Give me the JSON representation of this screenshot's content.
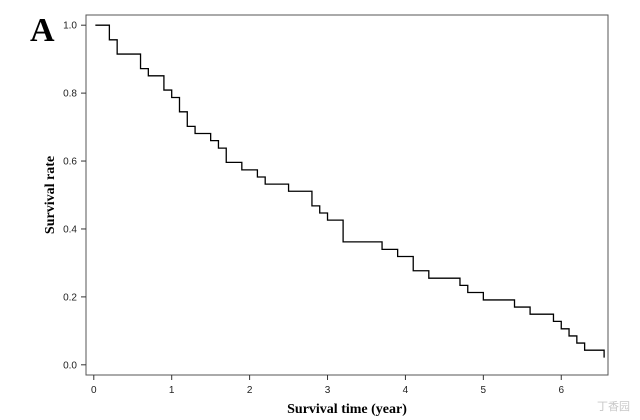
{
  "panel_label": "A",
  "chart_data": {
    "type": "line",
    "step": true,
    "title": "",
    "xlabel": "Survival time (year)",
    "ylabel": "Survival rate",
    "xlim": [
      -0.1,
      6.6
    ],
    "ylim": [
      -0.03,
      1.03
    ],
    "xticks": [
      0,
      1,
      2,
      3,
      4,
      5,
      6
    ],
    "xtick_labels": [
      "0",
      "1",
      "2",
      "3",
      "4",
      "5",
      "6"
    ],
    "yticks": [
      0.0,
      0.2,
      0.4,
      0.6,
      0.8,
      1.0
    ],
    "ytick_labels": [
      "0.0",
      "0.2",
      "0.4",
      "0.6",
      "0.8",
      "1.0"
    ],
    "grid": false,
    "legend": "none",
    "series": [
      {
        "color": "#000000",
        "x": [
          0.02,
          0.2,
          0.3,
          0.6,
          0.7,
          0.9,
          1.0,
          1.1,
          1.2,
          1.3,
          1.5,
          1.6,
          1.7,
          1.9,
          2.1,
          2.2,
          2.5,
          2.8,
          2.9,
          3.0,
          3.2,
          3.7,
          3.9,
          4.1,
          4.3,
          4.7,
          4.8,
          5.0,
          5.4,
          5.6,
          5.9,
          6.0,
          6.1,
          6.2,
          6.3,
          6.55
        ],
        "y": [
          1.0,
          0.957,
          0.915,
          0.872,
          0.851,
          0.809,
          0.787,
          0.745,
          0.702,
          0.681,
          0.66,
          0.638,
          0.596,
          0.574,
          0.553,
          0.532,
          0.511,
          0.468,
          0.447,
          0.426,
          0.362,
          0.34,
          0.319,
          0.277,
          0.255,
          0.234,
          0.213,
          0.191,
          0.17,
          0.149,
          0.128,
          0.106,
          0.085,
          0.064,
          0.043,
          0.021
        ]
      }
    ]
  },
  "watermark": "丁香园"
}
